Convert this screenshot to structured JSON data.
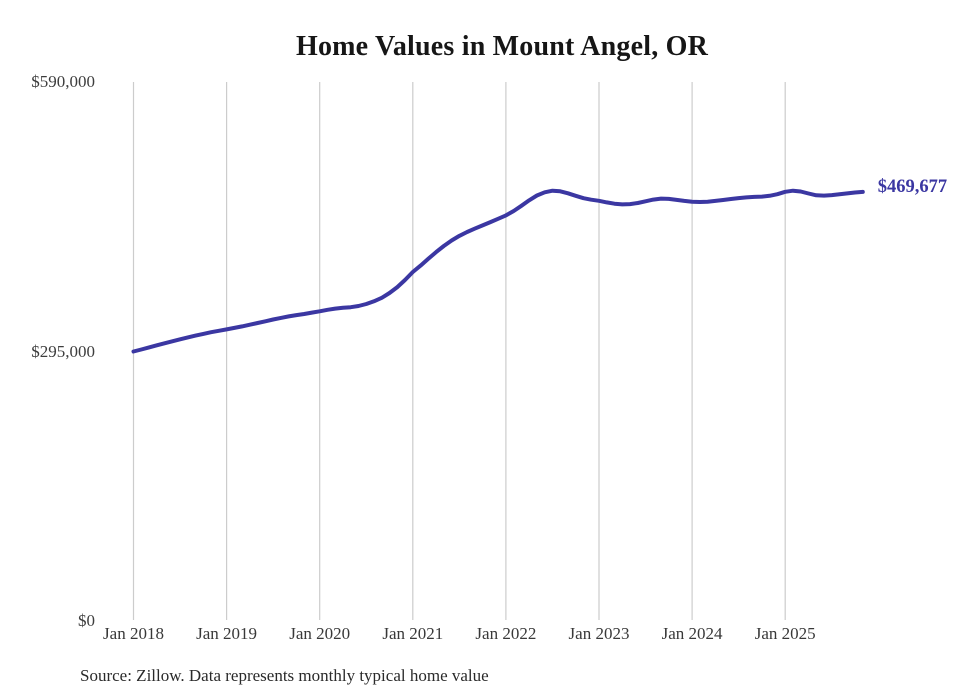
{
  "title": "Home Values in Mount Angel, OR",
  "source_note": "Source: Zillow. Data represents monthly typical home value",
  "colors": {
    "line": "#3b37a2",
    "end_label": "#3b37a2",
    "grid": "#cccccc",
    "title_text": "#161616",
    "axis_text": "#3d3d3d",
    "source_text": "#2a2a2a",
    "background": "#ffffff"
  },
  "chart_data": {
    "type": "line",
    "title": "Home Values in Mount Angel, OR",
    "xlabel": "",
    "ylabel": "",
    "ylim": [
      0,
      590000
    ],
    "grid": "vertical-only",
    "legend": "none",
    "x_tick_labels": [
      "Jan 2018",
      "Jan 2019",
      "Jan 2020",
      "Jan 2021",
      "Jan 2022",
      "Jan 2023",
      "Jan 2024",
      "Jan 2025"
    ],
    "y_ticks": [
      {
        "label": "$590,000",
        "value": 590000
      },
      {
        "label": "$295,000",
        "value": 295000
      },
      {
        "label": "$0",
        "value": 0
      }
    ],
    "x_start_month": "2018-01",
    "x_end_month": "2025-11",
    "x_interval": "monthly",
    "end_label": "$469,677",
    "final_value": 469677,
    "series": [
      {
        "name": "Monthly typical home value",
        "values": [
          295000,
          297200,
          299500,
          301800,
          304000,
          306200,
          308300,
          310400,
          312400,
          314300,
          316100,
          317700,
          319200,
          320800,
          322500,
          324300,
          326200,
          328100,
          330000,
          331800,
          333400,
          334800,
          336000,
          337600,
          339000,
          340600,
          342000,
          342800,
          343500,
          344800,
          347000,
          350000,
          353800,
          359000,
          365500,
          373300,
          382000,
          389000,
          396500,
          403800,
          410500,
          416500,
          421500,
          425800,
          429500,
          433000,
          436600,
          440300,
          444000,
          448800,
          454500,
          460500,
          465800,
          469300,
          471000,
          470400,
          468200,
          465400,
          462800,
          461200,
          460000,
          458200,
          456800,
          456000,
          456400,
          457600,
          459400,
          461300,
          462400,
          462000,
          460900,
          459800,
          459000,
          458700,
          459000,
          459800,
          460800,
          461900,
          462900,
          463700,
          464200,
          464600,
          465400,
          467200,
          469800,
          471000,
          470100,
          468000,
          466000,
          465600,
          466200,
          467100,
          468100,
          469000,
          469677
        ]
      }
    ]
  }
}
